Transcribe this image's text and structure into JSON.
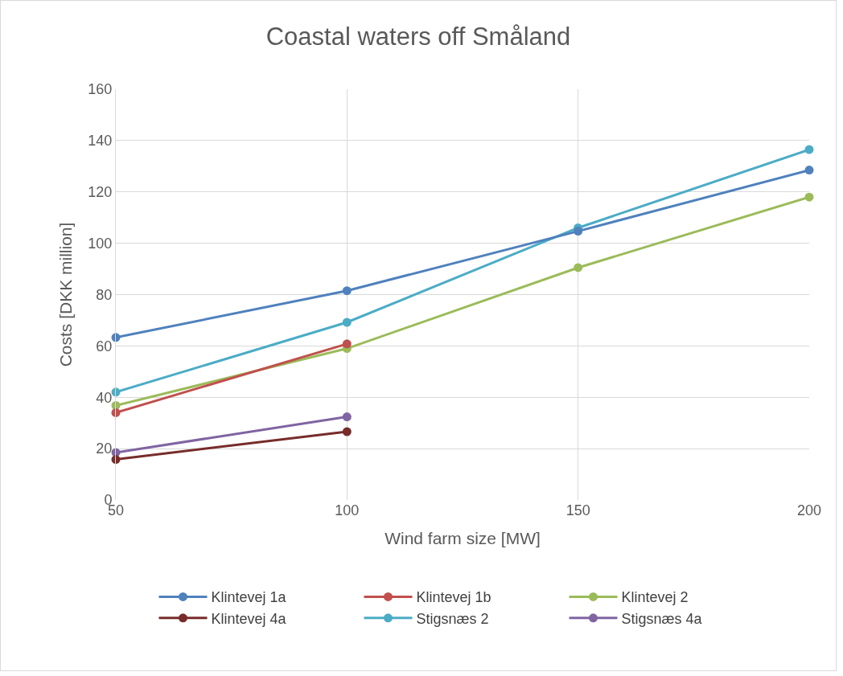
{
  "chart_data": {
    "type": "line",
    "title": "Coastal waters off Småland",
    "xlabel": "Wind farm size [MW]",
    "ylabel": "Costs [DKK million]",
    "x": [
      50,
      100,
      150,
      200
    ],
    "xlim": [
      50,
      200
    ],
    "xticks": [
      50,
      100,
      150,
      200
    ],
    "ylim": [
      0,
      160
    ],
    "yticks": [
      0,
      20,
      40,
      60,
      80,
      100,
      120,
      140,
      160
    ],
    "grid": true,
    "legend": "bottom",
    "marker": "circle",
    "line_style": "solid",
    "series": [
      {
        "name": "Klintevej 1a",
        "color": "#4f81bd",
        "values": [
          63.3,
          81.5,
          104.7,
          128.5
        ]
      },
      {
        "name": "Klintevej 1b",
        "color": "#c0504d",
        "values": [
          34,
          60.8,
          null,
          null
        ]
      },
      {
        "name": "Klintevej 2",
        "color": "#9bbb59",
        "values": [
          36.8,
          59,
          90.5,
          118
        ]
      },
      {
        "name": "Klintevej 4a",
        "color": "#772c2a",
        "values": [
          15.8,
          26.6,
          null,
          null
        ]
      },
      {
        "name": "Stigsnæs 2",
        "color": "#4bacc6",
        "values": [
          42,
          69.2,
          106,
          136.5
        ]
      },
      {
        "name": "Stigsnæs 4a",
        "color": "#8064a2",
        "values": [
          18.5,
          32.4,
          null,
          null
        ]
      }
    ]
  }
}
